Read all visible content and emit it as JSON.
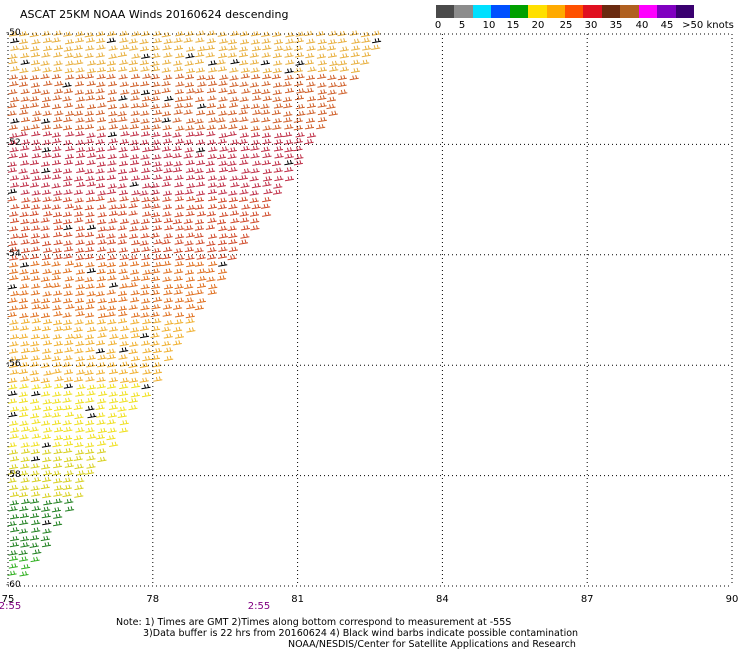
{
  "header": {
    "title": "ASCAT 25KM NOAA Winds 20160624 descending"
  },
  "legend": {
    "labels": [
      "0",
      "5",
      "10",
      "15",
      "20",
      "25",
      "30",
      "35",
      "40",
      "45",
      ">50 knots"
    ],
    "colors": [
      "#4a4a4a",
      "#8c8c8c",
      "#00e0ff",
      "#0050ff",
      "#00a000",
      "#ffe000",
      "#ffaa00",
      "#ff5000",
      "#e01020",
      "#6a2a10",
      "#b06020",
      "#ff00ff",
      "#8000c0",
      "#3a0070"
    ]
  },
  "axes": {
    "x_ticks": [
      "75",
      "78",
      "81",
      "84",
      "87",
      "90"
    ],
    "y_ticks": [
      "-50",
      "-52",
      "-54",
      "-56",
      "-58",
      "-60"
    ],
    "times": [
      "2:55",
      "2:55"
    ]
  },
  "notes": {
    "line1": "Note: 1) Times are GMT 2)Times along bottom correspond to measurement at -55S",
    "line2": "3)Data buffer is 22 hrs from 20160624 4) Black wind barbs indicate possible contamination",
    "line3": "NOAA/NESDIS/Center for Satellite Applications and Research"
  },
  "map_data": {
    "lon_range": [
      75,
      90
    ],
    "lat_range": [
      -60,
      -50
    ],
    "grid": "dotted",
    "swath_color_by_lat": [
      {
        "lat": -50.0,
        "color": "#e8b040"
      },
      {
        "lat": -50.8,
        "color": "#d0602a"
      },
      {
        "lat": -51.8,
        "color": "#c03048"
      },
      {
        "lat": -53.0,
        "color": "#d04a2a"
      },
      {
        "lat": -54.2,
        "color": "#e07020"
      },
      {
        "lat": -55.2,
        "color": "#f0b030"
      },
      {
        "lat": -56.3,
        "color": "#f0e020"
      },
      {
        "lat": -57.5,
        "color": "#d8d020"
      },
      {
        "lat": -58.5,
        "color": "#208020"
      },
      {
        "lat": -59.5,
        "color": "#30b020"
      }
    ]
  }
}
